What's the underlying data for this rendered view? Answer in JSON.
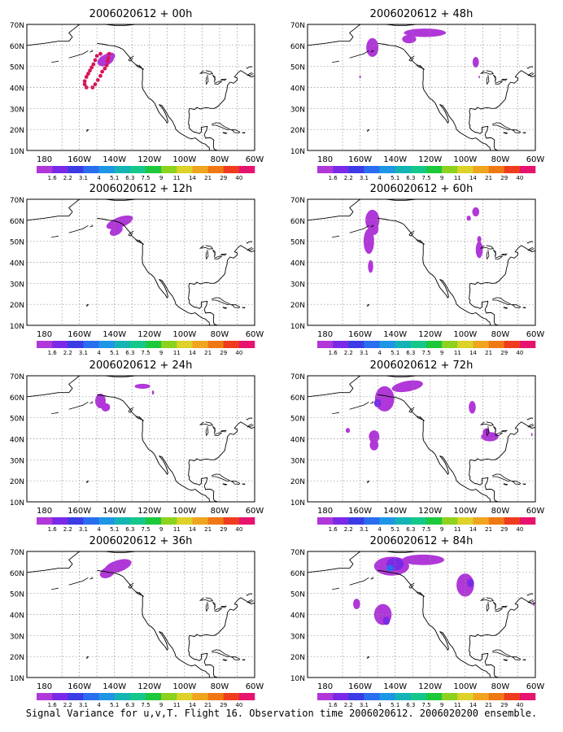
{
  "caption": "Signal Variance for u,v,T. Flight 16. Observation time 2006020612. 2006020200 ensemble.",
  "lat_labels": [
    "70N",
    "60N",
    "50N",
    "40N",
    "30N",
    "20N",
    "10N"
  ],
  "lon_labels": [
    "180",
    "160W",
    "140W",
    "120W",
    "100W",
    "80W",
    "60W"
  ],
  "colorbar": {
    "labels": [
      "1.6",
      "2.2",
      "3.1",
      "4",
      "5.1",
      "6.3",
      "7.5",
      "9",
      "11",
      "14",
      "21",
      "29",
      "40"
    ],
    "colors": [
      "#b038d8",
      "#7a2ae6",
      "#3c3ce6",
      "#2a6ef0",
      "#1e96e6",
      "#14b4b4",
      "#14c88c",
      "#1ec83c",
      "#8cd21e",
      "#dcd228",
      "#f0a51e",
      "#f07814",
      "#f03c1e",
      "#e6146e"
    ]
  },
  "panels": [
    {
      "id": "p00",
      "title": "2006020612 + 00h"
    },
    {
      "id": "p48",
      "title": "2006020612 + 48h"
    },
    {
      "id": "p12",
      "title": "2006020612 + 12h"
    },
    {
      "id": "p60",
      "title": "2006020612 + 60h"
    },
    {
      "id": "p24",
      "title": "2006020612 + 24h"
    },
    {
      "id": "p72",
      "title": "2006020612 + 72h"
    },
    {
      "id": "p36",
      "title": "2006020612 + 36h"
    },
    {
      "id": "p84",
      "title": "2006020612 + 84h"
    }
  ]
}
